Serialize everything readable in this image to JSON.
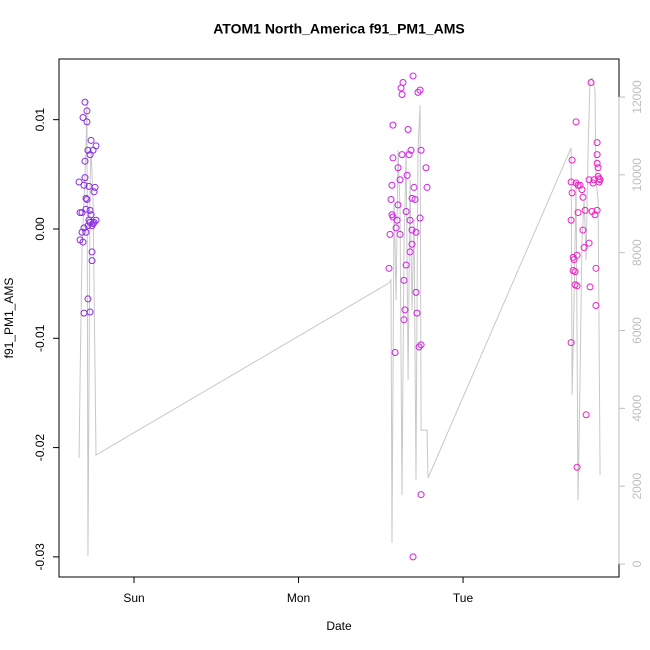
{
  "chart_data": {
    "type": "scatter",
    "title": "ATOM1 North_America f91_PM1_AMS",
    "x_label": "Date",
    "y_label": "f91_PM1_AMS",
    "xlim": [
      -0.456,
      2.948
    ],
    "xticks": [
      {
        "value": 0,
        "label": "Sun"
      },
      {
        "value": 1,
        "label": "Mon"
      },
      {
        "value": 2,
        "label": "Tue"
      }
    ],
    "ylim": [
      -0.03184,
      0.01555
    ],
    "yticks": [
      -0.03,
      -0.02,
      -0.01,
      {
        "value": 0,
        "label": "0.00"
      },
      0.01
    ],
    "y2lim": [
      -334,
      12976
    ],
    "y2ticks": [
      0,
      2000,
      4000,
      6000,
      8000,
      10000,
      12000
    ],
    "y2_color": "#bebebe",
    "series": [
      {
        "color": "#8a2be2",
        "x": [
          -0.334,
          -0.328,
          -0.316,
          -0.328,
          -0.31,
          -0.31,
          -0.298,
          -0.286,
          -0.286,
          -0.298,
          -0.298,
          -0.304,
          -0.292,
          -0.292,
          -0.304,
          -0.316,
          -0.292,
          -0.28,
          -0.274,
          -0.267,
          -0.255,
          -0.243,
          -0.231,
          -0.267,
          -0.261,
          -0.28,
          -0.261,
          -0.267,
          -0.249,
          -0.231,
          -0.237,
          -0.243,
          -0.274,
          -0.286,
          -0.304,
          -0.28,
          -0.267,
          -0.255,
          -0.255,
          -0.249
        ],
        "values": [
          0.0043,
          0.0015,
          0.0015,
          -0.001,
          -0.0012,
          0.0102,
          0.0116,
          0.0108,
          0.0098,
          0.0062,
          0.0047,
          0.004,
          0.0028,
          0.0018,
          0.0001,
          -0.0003,
          -0.0003,
          0.0003,
          0.0008,
          0.0006,
          0.0003,
          0.0006,
          0.0008,
          0.0017,
          0.0013,
          0.0072,
          0.0081,
          0.0068,
          0.0072,
          0.0076,
          0.0038,
          0.0034,
          0.0039,
          0.0027,
          -0.0077,
          -0.0064,
          -0.0076,
          -0.0021,
          -0.0029,
          0.0005
        ]
      },
      {
        "color": "#d21ee6",
        "x": [
          1.55,
          1.574,
          1.574,
          1.568,
          1.562,
          1.568,
          1.574,
          1.556,
          1.593,
          1.599,
          1.605,
          1.605,
          1.617,
          1.623,
          1.629,
          1.635,
          1.629,
          1.641,
          1.647,
          1.654,
          1.641,
          1.587,
          1.617,
          1.66,
          1.666,
          1.672,
          1.678,
          1.684,
          1.69,
          1.69,
          1.696,
          1.702,
          1.708,
          1.714,
          1.72,
          1.726,
          1.739,
          1.745,
          1.745,
          1.733,
          1.745,
          1.696,
          1.781,
          1.775,
          1.69,
          1.714,
          1.739,
          1.654,
          1.678
        ],
        "values": [
          -0.0036,
          0.0095,
          0.0065,
          0.004,
          0.0027,
          0.0013,
          0.0011,
          -0.0005,
          0.0001,
          0.0008,
          0.0056,
          0.0022,
          0.0045,
          0.0129,
          0.0123,
          0.0134,
          0.0068,
          -0.0047,
          -0.0074,
          -0.0033,
          -0.0083,
          -0.0113,
          -0.0005,
          0.0049,
          0.0091,
          0.0068,
          0.0008,
          0.0072,
          0.0028,
          -0.0014,
          0.014,
          0.0038,
          0.0027,
          -0.0058,
          -0.0077,
          0.0125,
          0.0127,
          0.0072,
          -0.0106,
          -0.0108,
          -0.0243,
          -0.03,
          0.0038,
          0.0056,
          -0.0001,
          -0.0003,
          0.001,
          0.0016,
          -0.0021
        ]
      },
      {
        "color": "#f01ec8",
        "x": [
          2.657,
          2.663,
          2.657,
          2.663,
          2.657,
          2.669,
          2.669,
          2.675,
          2.681,
          2.681,
          2.687,
          2.687,
          2.693,
          2.693,
          2.699,
          2.699,
          2.711,
          2.723,
          2.729,
          2.729,
          2.736,
          2.742,
          2.748,
          2.693,
          2.766,
          2.766,
          2.772,
          2.778,
          2.784,
          2.79,
          2.796,
          2.802,
          2.808,
          2.808,
          2.815,
          2.815,
          2.815,
          2.821,
          2.821,
          2.827,
          2.827,
          2.833,
          2.815
        ],
        "values": [
          -0.0104,
          0.0063,
          0.0043,
          0.0033,
          0.0008,
          -0.0026,
          -0.0038,
          -0.0028,
          -0.0039,
          -0.0051,
          0.0098,
          0.0042,
          -0.0024,
          -0.0052,
          0.004,
          0.0015,
          0.004,
          0.0036,
          0.0029,
          -0.0001,
          -0.0017,
          0.0017,
          -0.017,
          -0.0218,
          -0.0013,
          0.0045,
          -0.0053,
          0.0134,
          0.0016,
          0.0042,
          0.0045,
          0.0013,
          -0.007,
          -0.0036,
          0.0079,
          0.0068,
          0.006,
          0.0056,
          0.0048,
          0.0046,
          0.0043,
          0.0045,
          0.0017
        ]
      },
      {
        "type": "line",
        "axis": "y2",
        "color": "#c8c8c8",
        "x": [
          -0.334,
          -0.328,
          -0.316,
          -0.304,
          -0.292,
          -0.286,
          -0.28,
          -0.274,
          -0.267,
          -0.261,
          -0.249,
          -0.231,
          1.55,
          1.562,
          1.568,
          1.581,
          1.593,
          1.605,
          1.617,
          1.629,
          1.641,
          1.654,
          1.666,
          1.678,
          1.69,
          1.702,
          1.714,
          1.726,
          1.739,
          1.745,
          1.751,
          1.781,
          1.787,
          2.657,
          2.663,
          2.675,
          2.687,
          2.699,
          2.711,
          2.723,
          2.736,
          2.748,
          2.76,
          2.772,
          2.784,
          2.802,
          2.808,
          2.821,
          2.833
        ],
        "values": [
          2720,
          4730,
          8070,
          9350,
          10640,
          11920,
          205,
          4210,
          9870,
          10640,
          9350,
          2800,
          7220,
          7300,
          540,
          9350,
          6780,
          10640,
          9100,
          1770,
          8070,
          10640,
          4730,
          9870,
          6530,
          8840,
          2160,
          10640,
          11790,
          3440,
          3440,
          3440,
          2210,
          10690,
          4340,
          6780,
          9870,
          1640,
          4730,
          8320,
          9350,
          7810,
          10640,
          12440,
          12490,
          12180,
          9870,
          9350,
          2290
        ]
      }
    ]
  }
}
